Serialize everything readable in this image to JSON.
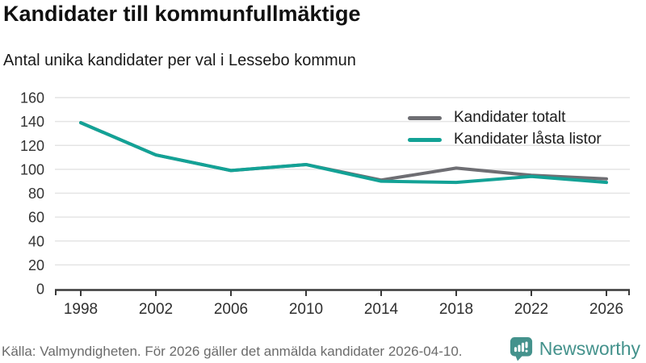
{
  "header": {
    "title": "Kandidater till kommunfullmäktige",
    "subtitle": "Antal unika kandidater per val i Lessebo kommun"
  },
  "chart_data": {
    "type": "line",
    "title": "Kandidater till kommunfullmäktige",
    "subtitle": "Antal unika kandidater per val i Lessebo kommun",
    "x": [
      1998,
      2002,
      2006,
      2010,
      2014,
      2018,
      2022,
      2026
    ],
    "series": [
      {
        "name": "Kandidater totalt",
        "color": "#6e6e73",
        "values": [
          139,
          112,
          99,
          104,
          91,
          101,
          95,
          92
        ]
      },
      {
        "name": "Kandidater låsta listor",
        "color": "#13a296",
        "values": [
          139,
          112,
          99,
          104,
          90,
          89,
          94,
          89
        ]
      }
    ],
    "ylim": [
      0,
      160
    ],
    "yticks": [
      0,
      20,
      40,
      60,
      80,
      100,
      120,
      140,
      160
    ],
    "grid": true,
    "legend_position": "top-right",
    "xlabel": "",
    "ylabel": ""
  },
  "footer": {
    "source": "Källa: Valmyndigheten. För 2026 gäller det anmälda kandidater 2026-04-10.",
    "brand": "Newsworthy"
  },
  "colors": {
    "series_total": "#6e6e73",
    "series_locked": "#13a296",
    "brand_teal": "#44928c",
    "grid": "#e4e4e4",
    "axis": "#3a3a3a",
    "tick_text": "#333333"
  },
  "icons": {
    "brand_logo": "bar-chart-speech-bubble-icon"
  }
}
